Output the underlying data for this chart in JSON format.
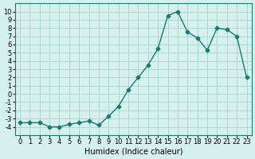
{
  "x": [
    0,
    1,
    2,
    3,
    4,
    5,
    6,
    7,
    8,
    9,
    10,
    11,
    12,
    13,
    14,
    15,
    16,
    17,
    18,
    19,
    20,
    21,
    22,
    23
  ],
  "y": [
    -3.5,
    -3.5,
    -3.5,
    -4.0,
    -4.0,
    -3.7,
    -3.5,
    -3.3,
    -3.8,
    -2.7,
    -1.5,
    0.5,
    2.0,
    3.5,
    5.5,
    9.5,
    10.0,
    7.5,
    6.8,
    5.3,
    8.0,
    7.8,
    7.0,
    2.0
  ],
  "line_color": "#1a7a6e",
  "marker": "D",
  "marker_size": 2.5,
  "bg_color": "#d6f0ee",
  "grid_color": "#a0ccc8",
  "xlabel": "Humidex (Indice chaleur)",
  "xlim": [
    -0.5,
    23.5
  ],
  "ylim": [
    -5,
    11
  ],
  "yticks": [
    -4,
    -3,
    -2,
    -1,
    0,
    1,
    2,
    3,
    4,
    5,
    6,
    7,
    8,
    9,
    10
  ],
  "xticks": [
    0,
    1,
    2,
    3,
    4,
    5,
    6,
    7,
    8,
    9,
    10,
    11,
    12,
    13,
    14,
    15,
    16,
    17,
    18,
    19,
    20,
    21,
    22,
    23
  ],
  "label_fontsize": 7,
  "tick_fontsize": 6
}
